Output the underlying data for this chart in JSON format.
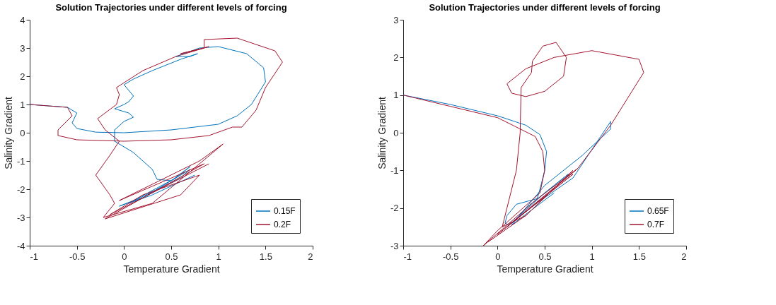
{
  "chart_data": [
    {
      "type": "line",
      "title": "Solution Trajectories under different levels of forcing",
      "xlabel": "Temperature Gradient",
      "ylabel": "Salinity Gradient",
      "xlim": [
        -1,
        2
      ],
      "ylim": [
        -4,
        4
      ],
      "xticks": [
        -1,
        -0.5,
        0,
        0.5,
        1,
        1.5,
        2
      ],
      "yticks": [
        -4,
        -3,
        -2,
        -1,
        0,
        1,
        2,
        3,
        4
      ],
      "grid": false,
      "legend": "bottom right",
      "line_style": "solid",
      "marker": "none",
      "series": [
        {
          "name": "0.15F",
          "color": "#0072bd",
          "x": [
            -1,
            -0.6,
            -0.5,
            -0.55,
            -0.5,
            -0.3,
            0,
            0.5,
            1,
            1.2,
            1.35,
            1.5,
            1.48,
            1.3,
            1.0,
            0.8,
            0.55,
            0.7,
            0.78,
            0.6,
            0.3,
            0.1,
            0,
            0.05,
            0.1,
            0.05,
            0,
            -0.1,
            0.05,
            0.1,
            0,
            -0.1,
            -0.1,
            0.1,
            0.3,
            0.35,
            0.5,
            0.7,
            0.55,
            0.1,
            -0.05,
            0.2,
            0.7,
            0.6,
            0.05,
            0.3,
            0.75
          ],
          "values": [
            1,
            0.9,
            0.7,
            0.35,
            0.15,
            0.02,
            0,
            0.1,
            0.3,
            0.6,
            1.0,
            1.8,
            2.3,
            2.8,
            3.05,
            3.0,
            2.7,
            2.7,
            2.8,
            2.6,
            2.2,
            1.9,
            1.7,
            1.5,
            1.3,
            1.1,
            1.0,
            0.85,
            0.7,
            0.55,
            0.4,
            0.1,
            -0.3,
            -0.7,
            -1.3,
            -1.65,
            -1.7,
            -1.2,
            -1.6,
            -2.4,
            -2.6,
            -2.3,
            -1.3,
            -1.6,
            -2.5,
            -2.2,
            -1.5
          ]
        },
        {
          "name": "0.2F",
          "color": "#a2142f",
          "x": [
            -1,
            -0.6,
            -0.55,
            -0.7,
            -0.7,
            -0.5,
            0,
            0.5,
            0.9,
            1.15,
            1.25,
            1.4,
            1.5,
            1.68,
            1.6,
            1.2,
            0.85,
            0.85,
            0.6,
            0.9,
            0.55,
            0.2,
            -0.08,
            -0.05,
            -0.08,
            -0.28,
            -0.2,
            -0.05,
            -0.15,
            -0.3,
            -0.15,
            -0.1,
            -0.22,
            0.3,
            1.05,
            0.8,
            -0.05,
            0.85,
            -0.2,
            0.6,
            0.8,
            0.2,
            -0.15,
            0.9
          ],
          "values": [
            1,
            0.9,
            0.6,
            0.1,
            -0.1,
            -0.25,
            -0.3,
            -0.25,
            -0.1,
            0.2,
            0.2,
            0.8,
            1.6,
            2.5,
            2.9,
            3.35,
            3.3,
            3.0,
            2.8,
            3.05,
            2.7,
            2.2,
            1.6,
            1.35,
            1.0,
            0.5,
            0.1,
            -0.3,
            -0.8,
            -1.5,
            -2.2,
            -2.5,
            -3.0,
            -2.5,
            -0.4,
            -1.0,
            -2.4,
            -1.1,
            -3.05,
            -2.2,
            -1.5,
            -2.2,
            -2.9,
            -1.1
          ]
        }
      ]
    },
    {
      "type": "line",
      "title": "Solution Trajectories under different levels of forcing",
      "xlabel": "Temperature Gradient",
      "ylabel": "Salinity Gradient",
      "xlim": [
        -1,
        2
      ],
      "ylim": [
        -3,
        3
      ],
      "xticks": [
        -1,
        -0.5,
        0,
        0.5,
        1,
        1.5,
        2
      ],
      "yticks": [
        -3,
        -2,
        -1,
        0,
        1,
        2,
        3
      ],
      "grid": false,
      "legend": "bottom right",
      "line_style": "solid",
      "marker": "none",
      "series": [
        {
          "name": "0.65F",
          "color": "#0072bd",
          "x": [
            -1,
            -0.5,
            0,
            0.3,
            0.45,
            0.52,
            0.5,
            0.45,
            0.42,
            0.2,
            0.1,
            0.08,
            0.12,
            0.4,
            0.8,
            1.2,
            1.2,
            0.9,
            0.5,
            0.2,
            0.1,
            0.5,
            0.75,
            0.3,
            0.15,
            0.6
          ],
          "values": [
            1,
            0.75,
            0.45,
            0.2,
            -0.05,
            -0.5,
            -1.0,
            -1.5,
            -1.75,
            -1.9,
            -2.2,
            -2.4,
            -2.45,
            -1.9,
            -1.2,
            0.3,
            0.1,
            -0.6,
            -1.4,
            -2.3,
            -2.5,
            -1.6,
            -1.1,
            -2.0,
            -2.45,
            -1.6
          ]
        },
        {
          "name": "0.7F",
          "color": "#a2142f",
          "x": [
            -1,
            -0.5,
            0,
            0.2,
            0.4,
            0.48,
            0.5,
            0.45,
            0,
            -0.15,
            0.4,
            0.85,
            0.1,
            0.8,
            0.45,
            0,
            0.85,
            1.2,
            1.55,
            1.5,
            1.0,
            0.6,
            0.3,
            0.1,
            0.15,
            0.3,
            0.5,
            0.7,
            0.73,
            0.62,
            0.48,
            0.37,
            0.36,
            0.25,
            0.24,
            0.2,
            0.1,
            0.05,
            0.3,
            0.8,
            0.3,
            -0.1
          ],
          "values": [
            1,
            0.7,
            0.4,
            0.15,
            -0.1,
            -0.5,
            -1.0,
            -1.6,
            -2.6,
            -3.0,
            -1.8,
            -0.95,
            -2.5,
            -1.1,
            -1.8,
            -2.7,
            -0.95,
            0.2,
            1.6,
            1.95,
            2.18,
            2.0,
            1.7,
            1.3,
            1.05,
            0.96,
            1.1,
            1.5,
            2.0,
            2.4,
            2.3,
            1.9,
            1.6,
            1.2,
            0.0,
            -1.0,
            -2.0,
            -2.5,
            -2.2,
            -1.0,
            -2.2,
            -2.9
          ]
        }
      ]
    }
  ]
}
